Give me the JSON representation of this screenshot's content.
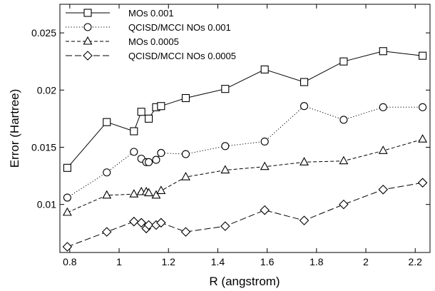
{
  "chart_data": {
    "type": "line",
    "xlabel": "R (angstrom)",
    "ylabel": "Error (Hartree)",
    "xlim": [
      0.76,
      2.26
    ],
    "ylim": [
      0.0058,
      0.0275
    ],
    "xticks": [
      0.8,
      1,
      1.2,
      1.4,
      1.6,
      1.8,
      2,
      2.2
    ],
    "yticks": [
      0.01,
      0.015,
      0.02,
      0.025
    ],
    "xtick_labels": [
      "0.8",
      "1",
      "1.2",
      "1.4",
      "1.6",
      "1.8",
      "2",
      "2.2"
    ],
    "ytick_labels": [
      "0.01",
      "0.015",
      "0.02",
      "0.025"
    ],
    "grid": false,
    "legend_position": "top-left",
    "series": [
      {
        "name": "MOs 0.001",
        "marker": "square",
        "dash": "solid",
        "x": [
          0.79,
          0.95,
          1.06,
          1.09,
          1.12,
          1.15,
          1.17,
          1.27,
          1.43,
          1.59,
          1.75,
          1.91,
          2.07,
          2.23
        ],
        "y": [
          0.0132,
          0.0172,
          0.0164,
          0.0181,
          0.0175,
          0.0185,
          0.0186,
          0.0193,
          0.0201,
          0.0218,
          0.0207,
          0.0225,
          0.0234,
          0.023
        ]
      },
      {
        "name": "QCISD/MCCI NOs 0.001",
        "marker": "circle",
        "dash": "dotted",
        "x": [
          0.79,
          0.95,
          1.06,
          1.09,
          1.11,
          1.12,
          1.15,
          1.17,
          1.27,
          1.43,
          1.59,
          1.75,
          1.91,
          2.07,
          2.23
        ],
        "y": [
          0.0106,
          0.0128,
          0.0146,
          0.014,
          0.0137,
          0.0137,
          0.0139,
          0.0145,
          0.0144,
          0.0151,
          0.0155,
          0.0186,
          0.0174,
          0.0185,
          0.0185
        ]
      },
      {
        "name": "MOs 0.0005",
        "marker": "triangle",
        "dash": "short-dash",
        "x": [
          0.79,
          0.95,
          1.06,
          1.09,
          1.11,
          1.12,
          1.15,
          1.17,
          1.27,
          1.43,
          1.59,
          1.75,
          1.91,
          2.07,
          2.23
        ],
        "y": [
          0.0093,
          0.0108,
          0.0109,
          0.0111,
          0.0111,
          0.011,
          0.0108,
          0.0112,
          0.0124,
          0.013,
          0.0133,
          0.0137,
          0.0138,
          0.0147,
          0.0157
        ]
      },
      {
        "name": "QCISD/MCCI NOs 0.0005",
        "marker": "diamond",
        "dash": "long-dash",
        "x": [
          0.79,
          0.95,
          1.06,
          1.09,
          1.11,
          1.12,
          1.15,
          1.17,
          1.27,
          1.43,
          1.59,
          1.75,
          1.91,
          2.07,
          2.23
        ],
        "y": [
          0.0063,
          0.0076,
          0.0085,
          0.0084,
          0.0079,
          0.0082,
          0.0082,
          0.0084,
          0.0076,
          0.0081,
          0.0095,
          0.0086,
          0.01,
          0.0113,
          0.0119
        ]
      }
    ]
  }
}
